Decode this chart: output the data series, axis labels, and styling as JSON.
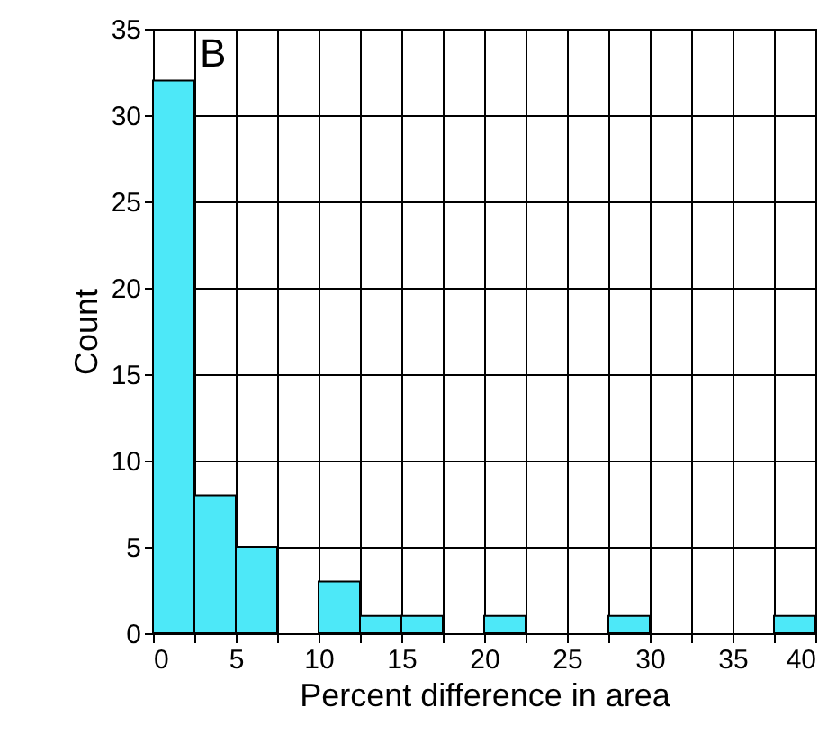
{
  "chart_data": {
    "type": "histogram",
    "xlabel": "Percent difference in area",
    "ylabel": "Count",
    "annotations": [
      "B"
    ],
    "bins": [
      0,
      2.5,
      5,
      7.5,
      10,
      12.5,
      15,
      17.5,
      20,
      22.5,
      25,
      27.5,
      30,
      32.5,
      35,
      37.5,
      40
    ],
    "values": [
      32,
      8,
      5,
      0,
      3,
      1,
      1,
      0,
      1,
      0,
      0,
      1,
      0,
      0,
      0,
      1
    ],
    "color": "#4de8f8",
    "xlim": [
      0,
      40
    ],
    "xticks": [
      0,
      {
        "value": 2.5,
        "label": null
      },
      5,
      {
        "value": 7.5,
        "label": null
      },
      10,
      {
        "value": 12.5,
        "label": null
      },
      15,
      {
        "value": 17.5,
        "label": null
      },
      20,
      {
        "value": 22.5,
        "label": null
      },
      25,
      {
        "value": 27.5,
        "label": null
      },
      30,
      {
        "value": 32.5,
        "label": null
      },
      35,
      {
        "value": 37.5,
        "label": null
      },
      40
    ],
    "ylim": [
      0,
      35
    ],
    "yticks": [
      0,
      5,
      10,
      15,
      20,
      25,
      30,
      35
    ],
    "grid": true
  }
}
